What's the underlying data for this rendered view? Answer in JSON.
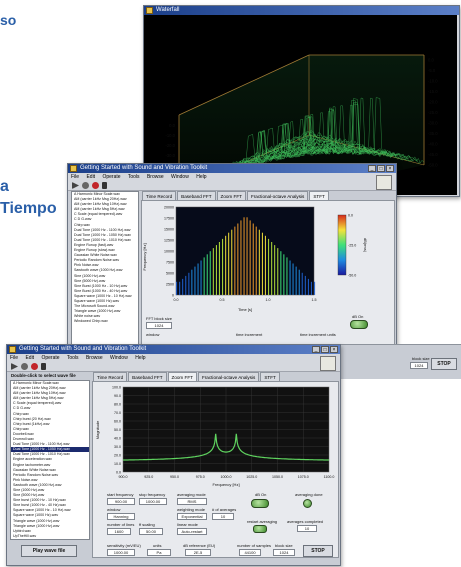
{
  "fragments": {
    "top": "so",
    "left_1": "a",
    "left_2": "Tiempo"
  },
  "waterfall": {
    "title": "Waterfall",
    "zaxis_labels": [
      "-50.0",
      "-45.0",
      "-40.0",
      "-35.0",
      "-30.0",
      "-25.0",
      "-20.0",
      "-15.0",
      "-10.0",
      "-5.0",
      "0.0"
    ],
    "left_labels": [
      "0.0",
      "-10.0",
      "-20.0",
      "-30.0",
      "-40.0"
    ]
  },
  "mid": {
    "title": "Getting Started with Sound and Vibration Toolkit",
    "menu": [
      "File",
      "Edit",
      "Operate",
      "Tools",
      "Browse",
      "Window",
      "Help"
    ],
    "tabs": [
      "Time Record",
      "Baseband FFT",
      "Zoom FFT",
      "Fractional-octave Analysis",
      "STFT"
    ],
    "active_tab": "STFT",
    "list": [
      "A Harmonic Minor Scale.wav",
      "AM (carrier 1kHz Msg 20Hz).wav",
      "AM (carrier 1kHz Msg 10Hz).wav",
      "AM (carrier 1kHz Msg 5Hz).wav",
      "C Scale (equal tempered).wav",
      "C D G.wav",
      "Chirp.wav",
      "Dual Tone (1000 Hz - 1100 Hz).wav",
      "Dual Tone (1000 Hz - 1050 Hz).wav",
      "Dual Tone (1000 Hz - 1010 Hz).wav",
      "Engine Runup (fast).wav",
      "Engine Runup (slow).wav",
      "Gaussian White Noise.wav",
      "Periodic Random Noise.wav",
      "Pink Noise.wav",
      "Sawtooth wave (1000 Hz).wav",
      "Sine (1000 Hz).wav",
      "Sine (5000 Hz).wav",
      "Sine Burst (1000 Hz - 10 Hz).wav",
      "Sine Burst (1000 Hz - 40 Hz).wav",
      "Square wave (1000 Hz - 10 Hz).wav",
      "Square wave (1000 Hz).wav",
      "The Microsoft Sound.wav",
      "Triangle wave (1000 Hz).wav",
      "White noise.wav",
      "Windowed Chirp.wav"
    ],
    "y_ticks": [
      "20000",
      "17500",
      "15000",
      "12500",
      "10000",
      "7500",
      "5000",
      "2500",
      "0"
    ],
    "x_ticks": [
      "0.0",
      "0.5",
      "1.0",
      "1.5"
    ],
    "ylabel": "Frequency [Hz]",
    "xlabel": "Time [s]",
    "colorbar_ticks": [
      "-50.0",
      "-25.0",
      "0.0"
    ],
    "colorbar_label": "dB(rms)",
    "block_size_label": "FFT block size",
    "block_size_value": "1024",
    "window_label": "window",
    "time_increment_label": "time increment",
    "time_increment_units_label": "time increment units",
    "right_label": "dB On",
    "stop_label": "STOP",
    "block_label": "block size",
    "block_value": "1024"
  },
  "front": {
    "title": "Getting Started with Sound and Vibration Toolkit",
    "menu": [
      "File",
      "Edit",
      "Operate",
      "Tools",
      "Browse",
      "Window",
      "Help"
    ],
    "instruction": "Double-click to select wave file",
    "tabs": [
      "Time Record",
      "Baseband FFT",
      "Zoom FFT",
      "Fractional-octave Analysis",
      "STFT"
    ],
    "active_tab": "Zoom FFT",
    "list": [
      "A Harmonic Minor Scale.wav",
      "AM (carrier 1kHz Msg 20Hz).wav",
      "AM (carrier 1kHz Msg 10Hz).wav",
      "AM (carrier 1kHz Msg 5Hz).wav",
      "C Scale (equal tempered).wav",
      "C D G.wav",
      "Chirp.wav",
      "Chirp burst (20 Hz).wav",
      "Chirp burst (1kHz).wav",
      "Chirp.wav",
      "Doorbell.wav",
      "Drumroll.wav",
      "Dual Tone (1000 Hz - 1100 Hz).wav",
      "Dual Tone (1000 Hz - 1050 Hz).wav",
      "Dual Tone (1000 Hz - 1010 Hz).wav",
      "Engine acceleration.wav",
      "Engine tachometer.wav",
      "Gaussian White Noise.wav",
      "Periodic Random Noise.wav",
      "Pink Noise.wav",
      "Sawtooth wave (1000 Hz).wav",
      "Sine (1000 Hz).wav",
      "Sine (5000 Hz).wav",
      "Sine burst (1000 Hz - 10 Hz).wav",
      "Sine burst (1000 Hz - 40 Hz).wav",
      "Square wave (1000 Hz - 10 Hz).wav",
      "Square wave (1000 Hz).wav",
      "Triangle wave (1000 Hz).wav",
      "Triangle wave (1000 Hz).wav",
      "Upbird.wav",
      "UpTheHill.wav",
      "White noise.wav",
      "Windowed Chirp.wav"
    ],
    "selected_index": 13,
    "y_ticks": [
      "100.0",
      "90.0",
      "80.0",
      "70.0",
      "60.0",
      "50.0",
      "40.0",
      "30.0",
      "20.0",
      "10.0",
      "0.0"
    ],
    "x_ticks": [
      "900.0",
      "925.0",
      "950.0",
      "975.0",
      "1000.0",
      "1025.0",
      "1050.0",
      "1075.0",
      "1100.0"
    ],
    "ylabel": "Magnitude",
    "xlabel": "Frequency [Hz]",
    "start_freq_label": "start frequency",
    "start_freq_value": "900.00",
    "stop_freq_label": "stop frequency",
    "stop_freq_value": "1000.00",
    "averaging_mode_label": "averaging mode",
    "averaging_mode_value": "RMS",
    "window_label": "window",
    "window_value": "Hanning",
    "weighting_mode_label": "weighting mode",
    "weighting_mode_value": "Exponential",
    "num_avg_label": "# of averages",
    "num_avg_value": "10",
    "num_lines_label": "number of lines",
    "num_lines_value": "1600",
    "fscaling_label": "ff scaling",
    "fscaling_value": "50.00",
    "linear_mode_label": "linear mode",
    "linear_mode_value": "Auto-restart",
    "db_on_label": "dB On",
    "avg_done_label": "averaging done",
    "restart_label": "restart averaging",
    "avg_completed_label": "averages completed",
    "avg_completed_value": "10",
    "play_label": "Play wave file",
    "sensitivity_label": "sensitivity (mV/EU)",
    "sensitivity_value": "1000.00",
    "unit_label": "units",
    "unit_value": "Pa",
    "dbref_label": "dB reference (EU)",
    "dbref_value": "2E-5",
    "num_samples_label": "number of samples",
    "num_samples_value": "44100",
    "block_size_label": "block size",
    "block_size_value": "1024",
    "stop_label": "STOP"
  },
  "colors": {
    "green": "#5fd35f",
    "plot_bg": "#111111",
    "titlebar": "#1b3f8a"
  }
}
